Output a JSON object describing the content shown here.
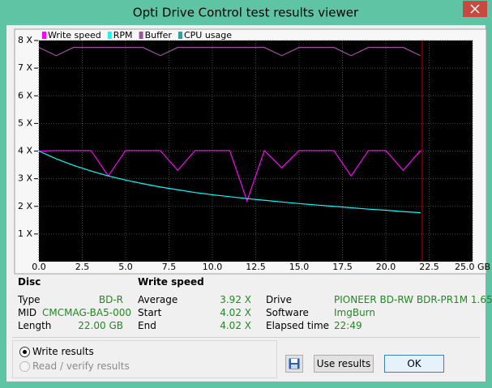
{
  "window": {
    "title": "Opti Drive Control test results viewer"
  },
  "chart_data": {
    "type": "line",
    "x": [
      0,
      1,
      2,
      3,
      4,
      5,
      6,
      7,
      8,
      9,
      10,
      11,
      12,
      13,
      14,
      15,
      16,
      17,
      18,
      19,
      20,
      21,
      22
    ],
    "series": [
      {
        "name": "Write speed",
        "color": "#ff00ff",
        "values": [
          4.0,
          4.02,
          4.02,
          4.02,
          3.1,
          4.02,
          4.02,
          4.02,
          3.3,
          4.02,
          4.02,
          4.02,
          2.2,
          4.02,
          3.4,
          4.02,
          4.02,
          4.02,
          3.1,
          4.02,
          4.02,
          3.3,
          4.02
        ]
      },
      {
        "name": "RPM",
        "color": "#00ffff",
        "values": [
          4.0,
          3.72,
          3.48,
          3.28,
          3.1,
          2.95,
          2.82,
          2.7,
          2.6,
          2.5,
          2.42,
          2.35,
          2.28,
          2.22,
          2.16,
          2.1,
          2.05,
          2.0,
          1.95,
          1.9,
          1.86,
          1.81,
          1.77
        ]
      },
      {
        "name": "Buffer",
        "color": "#a050a0",
        "values": [
          7.75,
          7.45,
          7.75,
          7.75,
          7.75,
          7.75,
          7.75,
          7.45,
          7.75,
          7.75,
          7.75,
          7.75,
          7.75,
          7.75,
          7.45,
          7.75,
          7.75,
          7.75,
          7.45,
          7.75,
          7.75,
          7.75,
          7.45
        ]
      },
      {
        "name": "CPU usage",
        "color": "#2fa0a0",
        "values": [
          null,
          null,
          null,
          null,
          null,
          null,
          null,
          null,
          null,
          null,
          null,
          null,
          null,
          null,
          null,
          null,
          null,
          null,
          null,
          null,
          null,
          null,
          null
        ]
      }
    ],
    "xlim": [
      0,
      25
    ],
    "ylim": [
      0,
      8
    ],
    "xticks": [
      {
        "value": 0,
        "label": "0.0"
      },
      {
        "value": 2.5,
        "label": "2.5"
      },
      {
        "value": 5,
        "label": "5.0"
      },
      {
        "value": 7.5,
        "label": "7.5"
      },
      {
        "value": 10,
        "label": "10.0"
      },
      {
        "value": 12.5,
        "label": "12.5"
      },
      {
        "value": 15,
        "label": "15.0"
      },
      {
        "value": 17.5,
        "label": "17.5"
      },
      {
        "value": 20,
        "label": "20.0"
      },
      {
        "value": 22.5,
        "label": "22.5"
      },
      {
        "value": 25,
        "label": "25.0 GB"
      }
    ],
    "yticks": [
      {
        "value": 1,
        "label": "1 X"
      },
      {
        "value": 2,
        "label": "2 X"
      },
      {
        "value": 3,
        "label": "3 X"
      },
      {
        "value": 4,
        "label": "4 X"
      },
      {
        "value": 5,
        "label": "5 X"
      },
      {
        "value": 6,
        "label": "6 X"
      },
      {
        "value": 7,
        "label": "7 X"
      },
      {
        "value": 8,
        "label": "8 X"
      }
    ],
    "grid": true,
    "end_marker": {
      "x": 22.1,
      "color": "#c00000"
    }
  },
  "disc": {
    "heading": "Disc",
    "rows": [
      [
        "Type",
        "BD-R"
      ],
      [
        "MID",
        "CMCMAG-BA5-000"
      ],
      [
        "Length",
        "22.00 GB"
      ]
    ]
  },
  "write_speed": {
    "heading": "Write speed",
    "rows": [
      [
        "Average",
        "3.92 X"
      ],
      [
        "Start",
        "4.02 X"
      ],
      [
        "End",
        "4.02 X"
      ]
    ]
  },
  "drive_info": {
    "rows": [
      [
        "Drive",
        "PIONEER  BD-RW  BDR-PR1M 1.65"
      ],
      [
        "Software",
        "ImgBurn"
      ],
      [
        "Elapsed time",
        "22:49"
      ]
    ]
  },
  "options": {
    "write_results": "Write results",
    "read_verify_results": "Read / verify results"
  },
  "buttons": {
    "use_results": "Use results",
    "ok": "OK"
  }
}
